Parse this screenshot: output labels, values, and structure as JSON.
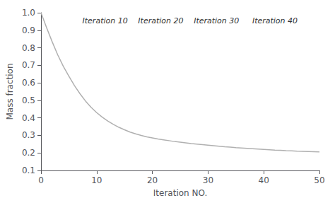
{
  "chart_data": {
    "type": "line",
    "xlabel": "Iteration NO.",
    "ylabel": "Mass fraction",
    "x": [
      0,
      1,
      2,
      3,
      4,
      5,
      6,
      7,
      8,
      9,
      10,
      11,
      12,
      13,
      14,
      15,
      16,
      17,
      18,
      19,
      20,
      21,
      22,
      23,
      24,
      25,
      26,
      27,
      28,
      29,
      30,
      31,
      32,
      33,
      34,
      35,
      36,
      37,
      38,
      39,
      40,
      41,
      42,
      43,
      44,
      45,
      46,
      47,
      48,
      49,
      50
    ],
    "values": [
      1.0,
      0.915,
      0.835,
      0.76,
      0.695,
      0.638,
      0.585,
      0.538,
      0.496,
      0.46,
      0.43,
      0.404,
      0.382,
      0.363,
      0.346,
      0.332,
      0.319,
      0.309,
      0.3,
      0.292,
      0.286,
      0.28,
      0.275,
      0.27,
      0.265,
      0.261,
      0.257,
      0.253,
      0.25,
      0.247,
      0.244,
      0.241,
      0.238,
      0.235,
      0.233,
      0.23,
      0.228,
      0.226,
      0.224,
      0.222,
      0.22,
      0.218,
      0.216,
      0.215,
      0.213,
      0.212,
      0.21,
      0.209,
      0.208,
      0.207,
      0.206
    ],
    "color": "#b0b0b0",
    "xlim": [
      0,
      50
    ],
    "ylim": [
      0.1,
      1.0
    ],
    "xticks": [
      0,
      10,
      20,
      30,
      40,
      50
    ],
    "yticks": [
      0.1,
      0.2,
      0.3,
      0.4,
      0.5,
      0.6,
      0.7,
      0.8,
      0.9,
      {
        "value": 1.0,
        "label": "1.0"
      }
    ],
    "grid": false,
    "annotations": [
      {
        "text": "Iteration 10",
        "x": 11.5
      },
      {
        "text": "Iteration 20",
        "x": 21.5
      },
      {
        "text": "Iteration 30",
        "x": 31.5
      },
      {
        "text": "Iteration 40",
        "x": 42.0
      }
    ]
  }
}
